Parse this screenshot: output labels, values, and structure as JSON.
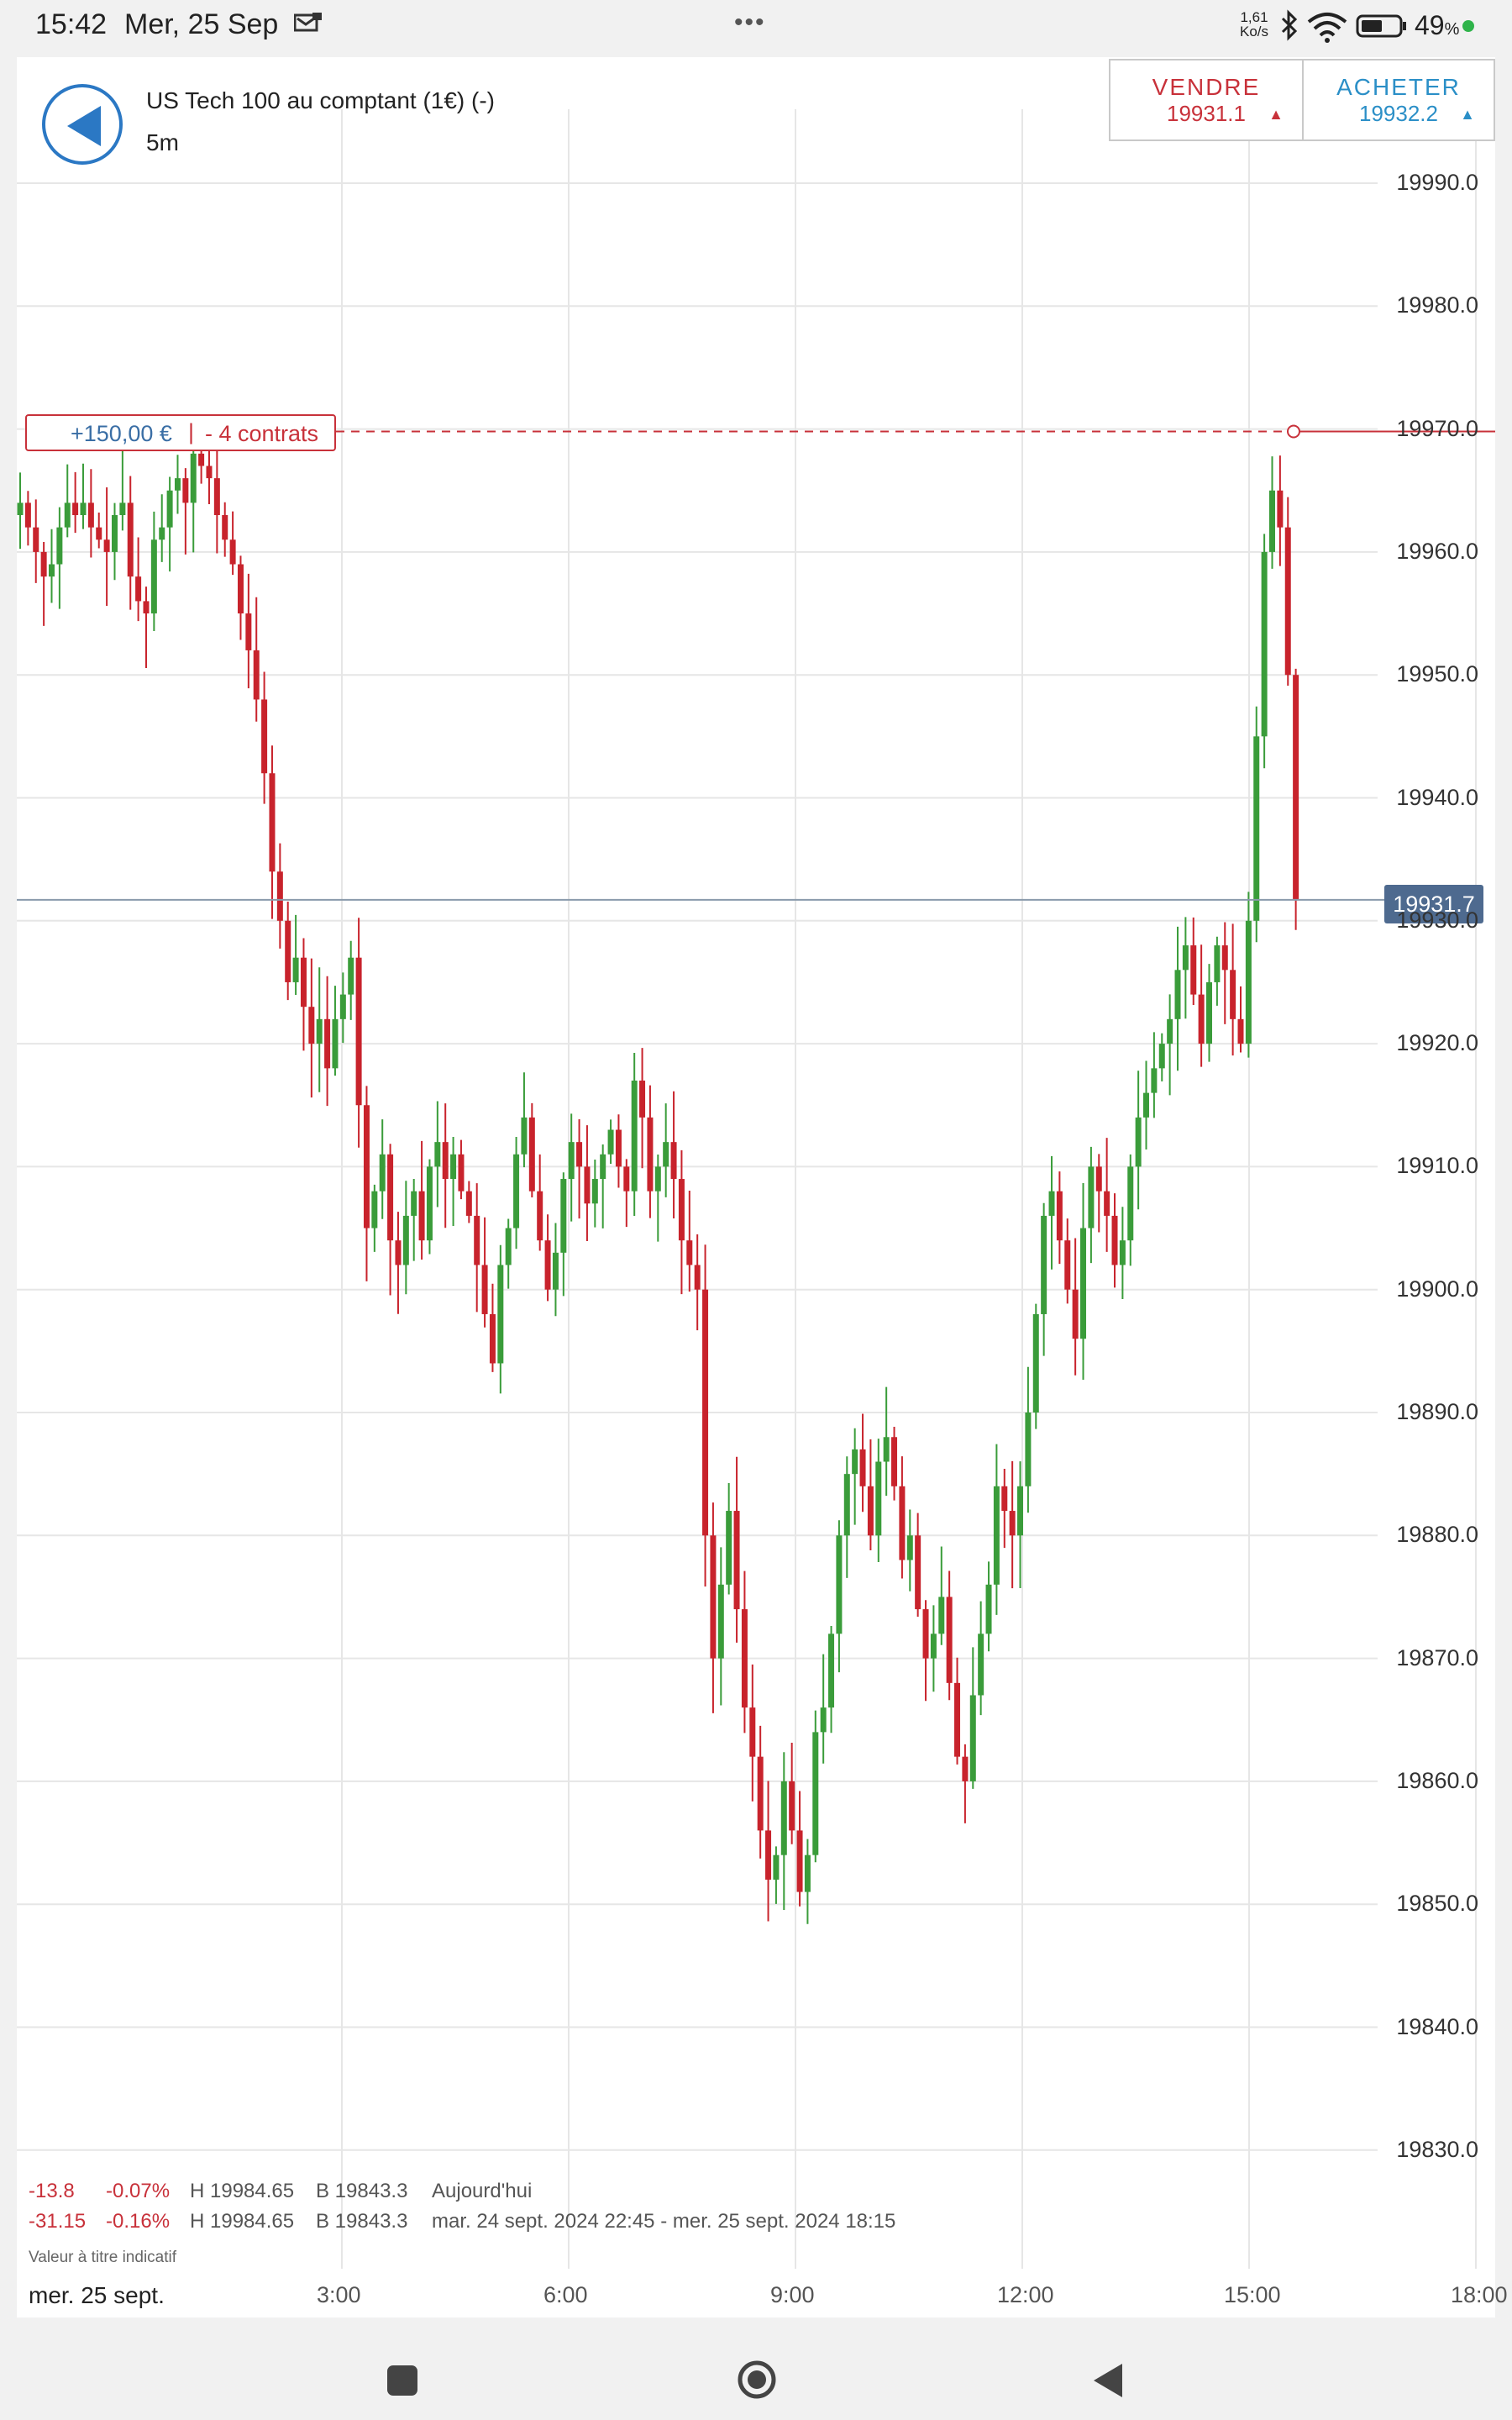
{
  "status_bar": {
    "time": "15:42",
    "date": "Mer, 25 Sep",
    "speed_top": "1,61",
    "speed_bottom": "Ko/s",
    "battery": "49",
    "battery_unit": "%",
    "icons": [
      "notification-icon",
      "menu-dots-icon",
      "bluetooth-icon",
      "wifi-icon",
      "battery-icon"
    ]
  },
  "header": {
    "instrument": "US Tech 100 au comptant (1€) (-)",
    "timeframe": "5m",
    "sell_label": "VENDRE",
    "sell_price": "19931.1",
    "buy_label": "ACHETER",
    "buy_price": "19932.2",
    "sell_color": "#c8313a",
    "buy_color": "#2b8fc7"
  },
  "position": {
    "pnl": "+150,00 €",
    "separator": "|",
    "contracts": "- 4 contrats",
    "entry_level": 19969.8
  },
  "current_price": "19931.7",
  "stats": {
    "row1": {
      "change": "-13.8",
      "pct": "-0.07%",
      "high": "H 19984.65",
      "low": "B 19843.3",
      "period": "Aujourd'hui"
    },
    "row2": {
      "change": "-31.15",
      "pct": "-0.16%",
      "high": "H 19984.65",
      "low": "B 19843.3",
      "period": "mar. 24 sept. 2024 22:45 - mer. 25 sept. 2024 18:15"
    },
    "indicative": "Valeur à titre indicatif"
  },
  "x_axis_date": "mer. 25 sept.",
  "chart_data": {
    "type": "candlestick",
    "y_ticks": [
      "19990.0",
      "19980.0",
      "19970.0",
      "19960.0",
      "19950.0",
      "19940.0",
      "19930.0",
      "19920.0",
      "19910.0",
      "19900.0",
      "19890.0",
      "19880.0",
      "19870.0",
      "19860.0",
      "19850.0",
      "19840.0",
      "19830.0"
    ],
    "ylim": [
      19825,
      19999
    ],
    "x_ticks": [
      "3:00",
      "6:00",
      "9:00",
      "12:00",
      "15:00",
      "18:00"
    ],
    "up_color": "#3a9c3a",
    "down_color": "#c8232c",
    "path_points": [
      19963,
      19964,
      19962,
      19960,
      19958,
      19959,
      19962,
      19964,
      19963,
      19964,
      19962,
      19961,
      19960,
      19963,
      19964,
      19958,
      19956,
      19955,
      19961,
      19962,
      19965,
      19966,
      19964,
      19968,
      19967,
      19966,
      19963,
      19961,
      19959,
      19955,
      19952,
      19948,
      19942,
      19934,
      19930,
      19925,
      19927,
      19923,
      19920,
      19922,
      19918,
      19922,
      19924,
      19927,
      19915,
      19905,
      19908,
      19911,
      19904,
      19902,
      19906,
      19908,
      19904,
      19910,
      19912,
      19909,
      19911,
      19908,
      19906,
      19902,
      19898,
      19894,
      19902,
      19905,
      19911,
      19914,
      19908,
      19904,
      19900,
      19903,
      19909,
      19912,
      19910,
      19907,
      19909,
      19911,
      19913,
      19910,
      19908,
      19917,
      19914,
      19908,
      19910,
      19912,
      19909,
      19904,
      19902,
      19900,
      19880,
      19870,
      19876,
      19882,
      19874,
      19866,
      19862,
      19856,
      19852,
      19854,
      19860,
      19856,
      19851,
      19854,
      19864,
      19866,
      19872,
      19880,
      19885,
      19887,
      19884,
      19880,
      19886,
      19888,
      19884,
      19878,
      19880,
      19874,
      19870,
      19872,
      19875,
      19868,
      19862,
      19860,
      19867,
      19872,
      19876,
      19884,
      19882,
      19880,
      19884,
      19890,
      19898,
      19906,
      19908,
      19904,
      19900,
      19896,
      19905,
      19910,
      19908,
      19906,
      19902,
      19904,
      19910,
      19914,
      19916,
      19918,
      19920,
      19922,
      19926,
      19928,
      19924,
      19920,
      19925,
      19928,
      19926,
      19922,
      19920,
      19930,
      19945,
      19960,
      19965,
      19962,
      19950,
      19931.7
    ]
  }
}
